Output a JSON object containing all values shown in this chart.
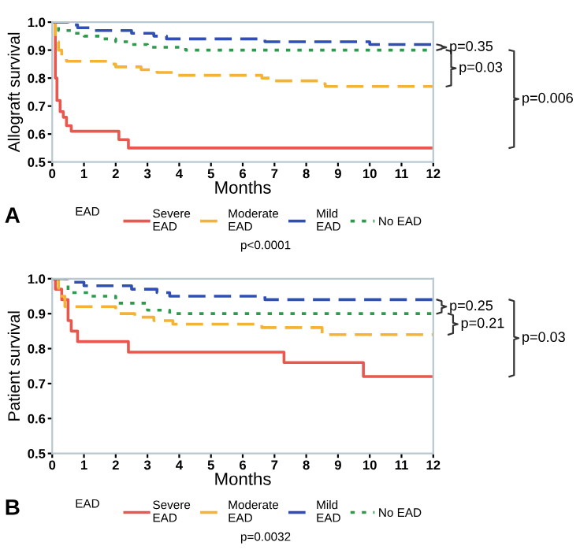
{
  "chart_data": [
    {
      "type": "step",
      "xlabel": "Months",
      "ylabel": "Allograft survival",
      "legend_title": "EAD",
      "legend": "bottom",
      "grid": false,
      "marker": "none",
      "xlim": [
        0,
        12
      ],
      "xticks": [
        0,
        1,
        2,
        3,
        4,
        5,
        6,
        7,
        8,
        9,
        10,
        11,
        12
      ],
      "ylim": [
        0.5,
        1.0
      ],
      "yticks": [
        0.5,
        0.6,
        0.7,
        0.8,
        0.9,
        {
          "value": 1.0,
          "label": "1.0"
        }
      ],
      "annotations": [
        "p<0.0001",
        "p=0.35",
        "p=0.03",
        "p=0.006",
        "A"
      ],
      "series": [
        {
          "name": "Severe\nEAD",
          "color": "#e8584f",
          "line_style": "solid",
          "x": [
            0,
            0.1,
            0.15,
            0.25,
            0.35,
            0.45,
            0.6,
            2.1,
            2.4,
            12
          ],
          "values": [
            1.0,
            0.8,
            0.72,
            0.68,
            0.66,
            0.63,
            0.61,
            0.58,
            0.55,
            0.55
          ]
        },
        {
          "name": "Moderate\nEAD",
          "color": "#f5b335",
          "line_style": "dashed",
          "x": [
            0,
            0.1,
            0.2,
            0.3,
            0.45,
            1.8,
            2.0,
            2.8,
            3.3,
            3.8,
            6.6,
            6.9,
            8.4,
            8.6,
            12
          ],
          "values": [
            1.0,
            0.93,
            0.9,
            0.87,
            0.86,
            0.85,
            0.84,
            0.83,
            0.82,
            0.81,
            0.8,
            0.79,
            0.78,
            0.77,
            0.77
          ]
        },
        {
          "name": "Mild\nEAD",
          "color": "#2f4fb5",
          "line_style": "dashed",
          "x": [
            0,
            0.5,
            0.8,
            1.2,
            2.5,
            3.2,
            3.6,
            6.7,
            10,
            12
          ],
          "values": [
            1.0,
            0.99,
            0.98,
            0.97,
            0.96,
            0.95,
            0.94,
            0.93,
            0.92,
            0.92
          ]
        },
        {
          "name": "No EAD",
          "color": "#2e9a4e",
          "line_style": "dotted",
          "x": [
            0,
            0.2,
            0.6,
            1.0,
            1.5,
            2.0,
            2.5,
            3.0,
            4.2,
            12
          ],
          "values": [
            1.0,
            0.97,
            0.96,
            0.95,
            0.94,
            0.93,
            0.92,
            0.91,
            0.9,
            0.9
          ]
        }
      ]
    },
    {
      "type": "step",
      "xlabel": "Months",
      "ylabel": "Patient survival",
      "legend_title": "EAD",
      "legend": "bottom",
      "grid": false,
      "marker": "none",
      "xlim": [
        0,
        12
      ],
      "xticks": [
        0,
        1,
        2,
        3,
        4,
        5,
        6,
        7,
        8,
        9,
        10,
        11,
        12
      ],
      "ylim": [
        0.5,
        1.0
      ],
      "yticks": [
        0.5,
        0.6,
        0.7,
        0.8,
        0.9,
        {
          "value": 1.0,
          "label": "1.0"
        }
      ],
      "annotations": [
        "p=0.0032",
        "p=0.25",
        "p=0.21",
        "p=0.03",
        "B"
      ],
      "series": [
        {
          "name": "Severe\nEAD",
          "color": "#e8584f",
          "line_style": "solid",
          "x": [
            0,
            0.1,
            0.3,
            0.5,
            0.6,
            0.8,
            2.4,
            7.3,
            9.8,
            12
          ],
          "values": [
            1.0,
            0.97,
            0.94,
            0.88,
            0.85,
            0.82,
            0.79,
            0.76,
            0.72,
            0.72
          ]
        },
        {
          "name": "Moderate\nEAD",
          "color": "#f5b335",
          "line_style": "dashed",
          "x": [
            0,
            0.2,
            0.4,
            2.0,
            2.6,
            3.2,
            3.8,
            6.6,
            8.5,
            12
          ],
          "values": [
            1.0,
            0.95,
            0.92,
            0.9,
            0.89,
            0.88,
            0.87,
            0.86,
            0.84,
            0.84
          ]
        },
        {
          "name": "Mild\nEAD",
          "color": "#2f4fb5",
          "line_style": "dashed",
          "x": [
            0,
            0.5,
            1.0,
            2.5,
            3.3,
            3.7,
            6.7,
            12
          ],
          "values": [
            1.0,
            0.99,
            0.98,
            0.97,
            0.96,
            0.95,
            0.94,
            0.94
          ]
        },
        {
          "name": "No EAD",
          "color": "#2e9a4e",
          "line_style": "dotted",
          "x": [
            0,
            0.5,
            1.2,
            2.0,
            3.0,
            3.7,
            12
          ],
          "values": [
            1.0,
            0.96,
            0.95,
            0.93,
            0.91,
            0.9,
            0.9
          ]
        }
      ]
    }
  ]
}
